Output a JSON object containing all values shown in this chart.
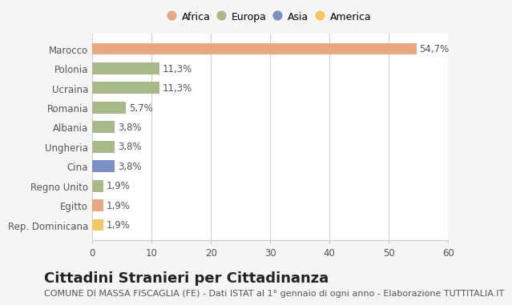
{
  "categories": [
    "Marocco",
    "Polonia",
    "Ucraina",
    "Romania",
    "Albania",
    "Ungheria",
    "Cina",
    "Regno Unito",
    "Egitto",
    "Rep. Dominicana"
  ],
  "values": [
    54.7,
    11.3,
    11.3,
    5.7,
    3.8,
    3.8,
    3.8,
    1.9,
    1.9,
    1.9
  ],
  "labels": [
    "54,7%",
    "11,3%",
    "11,3%",
    "5,7%",
    "3,8%",
    "3,8%",
    "3,8%",
    "1,9%",
    "1,9%",
    "1,9%"
  ],
  "colors": [
    "#E8A882",
    "#A8BA8A",
    "#A8BA8A",
    "#A8BA8A",
    "#A8BA8A",
    "#A8BA8A",
    "#7B90C4",
    "#A8BA8A",
    "#E8A882",
    "#F0C864"
  ],
  "continents": [
    "Africa",
    "Europa",
    "Asia",
    "America"
  ],
  "legend_colors": [
    "#E8A882",
    "#A8BA8A",
    "#7B90C4",
    "#F0C864"
  ],
  "xlim": [
    0,
    60
  ],
  "xticks": [
    0,
    10,
    20,
    30,
    40,
    50,
    60
  ],
  "title": "Cittadini Stranieri per Cittadinanza",
  "subtitle": "COMUNE DI MASSA FISCAGLIA (FE) - Dati ISTAT al 1° gennaio di ogni anno - Elaborazione TUTTITALIA.IT",
  "background_color": "#f5f5f5",
  "bar_background": "#ffffff",
  "title_fontsize": 13,
  "subtitle_fontsize": 8,
  "label_fontsize": 8.5,
  "tick_fontsize": 8.5
}
